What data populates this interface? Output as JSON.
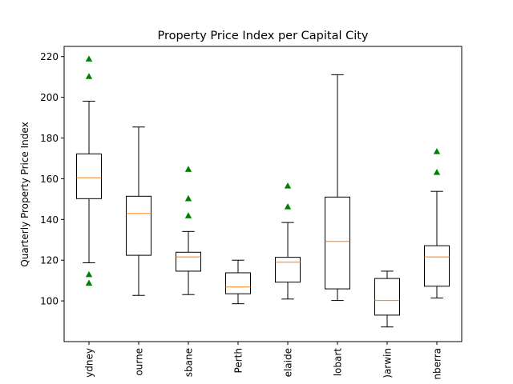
{
  "chart_data": {
    "type": "box",
    "title": "Property Price Index per Capital City",
    "xlabel": "",
    "ylabel": "Quarterly Property Price Index",
    "ylim": [
      80,
      225
    ],
    "yticks": [
      100,
      120,
      140,
      160,
      180,
      200,
      220
    ],
    "grid": false,
    "legend": "none",
    "colors": {
      "box": "#000000",
      "median": "#ff7f0e",
      "outlier": "#008000"
    },
    "categories": [
      "Sydney",
      "Melbourne",
      "Brisbane",
      "Perth",
      "Adelaide",
      "Hobart",
      "Darwin",
      "Canberra"
    ],
    "tick_labels": [
      "ydney",
      "ourne",
      "sbane",
      "Perth",
      "elaide",
      "lobart",
      ")arwin",
      "nberra"
    ],
    "boxes": [
      {
        "whisker_low": 118.7,
        "q1": 150.2,
        "median": 160.5,
        "q3": 172.2,
        "whisker_high": 198.1,
        "outliers": [
          218.9,
          210.3,
          113.0,
          108.8
        ]
      },
      {
        "whisker_low": 102.7,
        "q1": 122.4,
        "median": 142.9,
        "q3": 151.4,
        "whisker_high": 185.4,
        "outliers": []
      },
      {
        "whisker_low": 103.1,
        "q1": 114.6,
        "median": 121.6,
        "q3": 123.9,
        "whisker_high": 134.1,
        "outliers": [
          164.7,
          150.3,
          141.9
        ]
      },
      {
        "whisker_low": 98.6,
        "q1": 103.5,
        "median": 106.8,
        "q3": 113.8,
        "whisker_high": 120.0,
        "outliers": []
      },
      {
        "whisker_low": 100.9,
        "q1": 109.2,
        "median": 119.0,
        "q3": 121.4,
        "whisker_high": 138.5,
        "outliers": [
          156.5,
          146.3
        ]
      },
      {
        "whisker_low": 100.2,
        "q1": 105.9,
        "median": 129.2,
        "q3": 151.0,
        "whisker_high": 211.1,
        "outliers": []
      },
      {
        "whisker_low": 87.2,
        "q1": 93.0,
        "median": 100.2,
        "q3": 111.0,
        "whisker_high": 114.6,
        "outliers": []
      },
      {
        "whisker_low": 101.4,
        "q1": 107.2,
        "median": 121.6,
        "q3": 127.1,
        "whisker_high": 153.8,
        "outliers": [
          173.4,
          163.2
        ]
      }
    ]
  }
}
